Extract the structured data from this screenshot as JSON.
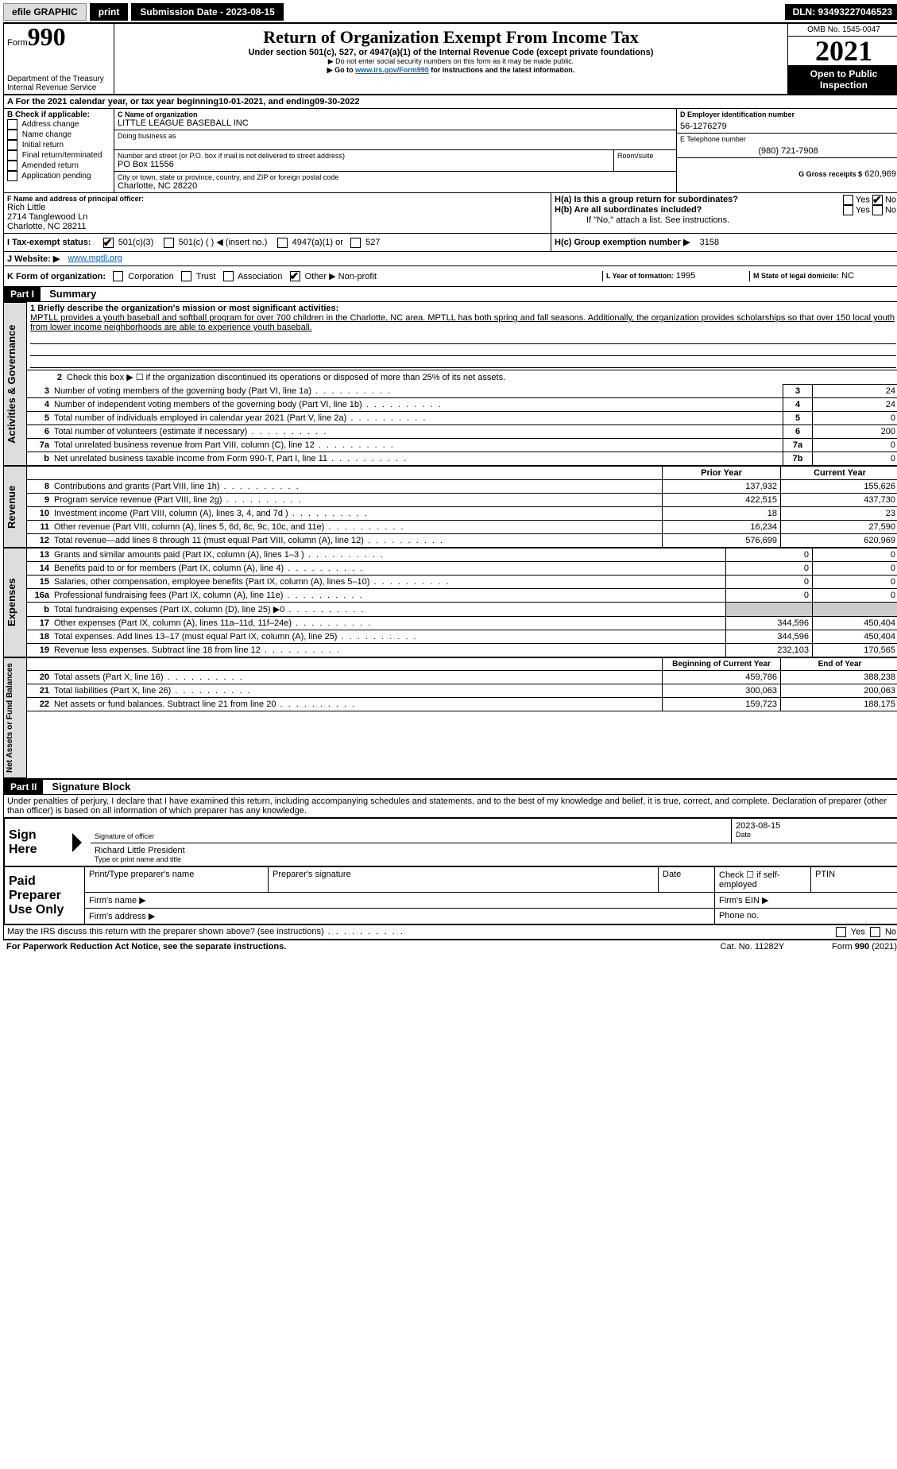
{
  "topbar": {
    "efile": "efile GRAPHIC",
    "print": "print",
    "submission": "Submission Date - 2023-08-15",
    "dln": "DLN: 93493227046523"
  },
  "header": {
    "form_label": "Form",
    "form_num": "990",
    "title": "Return of Organization Exempt From Income Tax",
    "subtitle": "Under section 501(c), 527, or 4947(a)(1) of the Internal Revenue Code (except private foundations)",
    "note1": "▶ Do not enter social security numbers on this form as it may be made public.",
    "note2_pre": "▶ Go to ",
    "note2_link": "www.irs.gov/Form990",
    "note2_post": " for instructions and the latest information.",
    "dept": "Department of the Treasury",
    "irs": "Internal Revenue Service",
    "omb": "OMB No. 1545-0047",
    "year": "2021",
    "open": "Open to Public Inspection"
  },
  "a": {
    "label_pre": "A For the 2021 calendar year, or tax year beginning ",
    "begin": "10-01-2021",
    "mid": " , and ending ",
    "end": "09-30-2022"
  },
  "b": {
    "header": "B Check if applicable:",
    "items": [
      "Address change",
      "Name change",
      "Initial return",
      "Final return/terminated",
      "Amended return",
      "Application pending"
    ]
  },
  "c": {
    "name_label": "C Name of organization",
    "name": "LITTLE LEAGUE BASEBALL INC",
    "dba_label": "Doing business as",
    "addr_label": "Number and street (or P.O. box if mail is not delivered to street address)",
    "room_label": "Room/suite",
    "addr": "PO Box 11556",
    "city_label": "City or town, state or province, country, and ZIP or foreign postal code",
    "city": "Charlotte, NC  28220"
  },
  "d": {
    "label": "D Employer identification number",
    "ein": "56-1276279"
  },
  "e": {
    "label": "E Telephone number",
    "phone": "(980) 721-7908"
  },
  "g": {
    "label": "G Gross receipts $",
    "amount": "620,969"
  },
  "f": {
    "label": "F  Name and address of principal officer:",
    "name": "Rich Little",
    "addr1": "2714 Tanglewood Ln",
    "addr2": "Charlotte, NC  28211"
  },
  "h": {
    "a_label": "H(a)  Is this a group return for subordinates?",
    "yes": "Yes",
    "no": "No",
    "b_label": "H(b)  Are all subordinates included?",
    "b_note": "If \"No,\" attach a list. See instructions.",
    "c_label": "H(c)  Group exemption number ▶",
    "c_val": "3158"
  },
  "i": {
    "label": "I    Tax-exempt status:",
    "opt1": "501(c)(3)",
    "opt2": "501(c) (  ) ◀ (insert no.)",
    "opt3": "4947(a)(1) or",
    "opt4": "527"
  },
  "j": {
    "label": "J    Website: ▶",
    "url": "www.mptll.org"
  },
  "k": {
    "label": "K Form of organization:",
    "opt1": "Corporation",
    "opt2": "Trust",
    "opt3": "Association",
    "opt4": "Other ▶",
    "other_val": "Non-profit"
  },
  "l": {
    "label": "L Year of formation:",
    "val": "1995"
  },
  "m": {
    "label": "M State of legal domicile:",
    "val": "NC"
  },
  "part1": {
    "header": "Part I",
    "title": "Summary",
    "q1": "1  Briefly describe the organization's mission or most significant activities:",
    "mission": "MPTLL provides a youth baseball and softball program for over 700 children in the Charlotte, NC area. MPTLL has both spring and fall seasons. Additionally, the organization provides scholarships so that over 150 local youth from lower income neighborhoods are able to experience youth baseball.",
    "q2": "Check this box ▶ ☐  if the organization discontinued its operations or disposed of more than 25% of its net assets.",
    "rows_gov": [
      {
        "n": "3",
        "t": "Number of voting members of the governing body (Part VI, line 1a)",
        "l": "3",
        "v": "24"
      },
      {
        "n": "4",
        "t": "Number of independent voting members of the governing body (Part VI, line 1b)",
        "l": "4",
        "v": "24"
      },
      {
        "n": "5",
        "t": "Total number of individuals employed in calendar year 2021 (Part V, line 2a)",
        "l": "5",
        "v": "0"
      },
      {
        "n": "6",
        "t": "Total number of volunteers (estimate if necessary)",
        "l": "6",
        "v": "200"
      },
      {
        "n": "7a",
        "t": "Total unrelated business revenue from Part VIII, column (C), line 12",
        "l": "7a",
        "v": "0"
      },
      {
        "n": "b",
        "t": "Net unrelated business taxable income from Form 990-T, Part I, line 11",
        "l": "7b",
        "v": "0"
      }
    ],
    "col_prior": "Prior Year",
    "col_current": "Current Year",
    "rows_rev": [
      {
        "n": "8",
        "t": "Contributions and grants (Part VIII, line 1h)",
        "p": "137,932",
        "c": "155,626"
      },
      {
        "n": "9",
        "t": "Program service revenue (Part VIII, line 2g)",
        "p": "422,515",
        "c": "437,730"
      },
      {
        "n": "10",
        "t": "Investment income (Part VIII, column (A), lines 3, 4, and 7d )",
        "p": "18",
        "c": "23"
      },
      {
        "n": "11",
        "t": "Other revenue (Part VIII, column (A), lines 5, 6d, 8c, 9c, 10c, and 11e)",
        "p": "16,234",
        "c": "27,590"
      },
      {
        "n": "12",
        "t": "Total revenue—add lines 8 through 11 (must equal Part VIII, column (A), line 12)",
        "p": "576,699",
        "c": "620,969"
      }
    ],
    "rows_exp": [
      {
        "n": "13",
        "t": "Grants and similar amounts paid (Part IX, column (A), lines 1–3 )",
        "p": "0",
        "c": "0"
      },
      {
        "n": "14",
        "t": "Benefits paid to or for members (Part IX, column (A), line 4)",
        "p": "0",
        "c": "0"
      },
      {
        "n": "15",
        "t": "Salaries, other compensation, employee benefits (Part IX, column (A), lines 5–10)",
        "p": "0",
        "c": "0"
      },
      {
        "n": "16a",
        "t": "Professional fundraising fees (Part IX, column (A), line 11e)",
        "p": "0",
        "c": "0"
      },
      {
        "n": "b",
        "t": "Total fundraising expenses (Part IX, column (D), line 25) ▶0",
        "p": "",
        "c": ""
      },
      {
        "n": "17",
        "t": "Other expenses (Part IX, column (A), lines 11a–11d, 11f–24e)",
        "p": "344,596",
        "c": "450,404"
      },
      {
        "n": "18",
        "t": "Total expenses. Add lines 13–17 (must equal Part IX, column (A), line 25)",
        "p": "344,596",
        "c": "450,404"
      },
      {
        "n": "19",
        "t": "Revenue less expenses. Subtract line 18 from line 12",
        "p": "232,103",
        "c": "170,565"
      }
    ],
    "col_begin": "Beginning of Current Year",
    "col_end": "End of Year",
    "rows_net": [
      {
        "n": "20",
        "t": "Total assets (Part X, line 16)",
        "p": "459,786",
        "c": "388,238"
      },
      {
        "n": "21",
        "t": "Total liabilities (Part X, line 26)",
        "p": "300,063",
        "c": "200,063"
      },
      {
        "n": "22",
        "t": "Net assets or fund balances. Subtract line 21 from line 20",
        "p": "159,723",
        "c": "188,175"
      }
    ]
  },
  "vtabs": {
    "gov": "Activities & Governance",
    "rev": "Revenue",
    "exp": "Expenses",
    "net": "Net Assets or Fund Balances"
  },
  "part2": {
    "header": "Part II",
    "title": "Signature Block",
    "decl": "Under penalties of perjury, I declare that I have examined this return, including accompanying schedules and statements, and to the best of my knowledge and belief, it is true, correct, and complete. Declaration of preparer (other than officer) is based on all information of which preparer has any knowledge.",
    "sign_here": "Sign Here",
    "sig_officer": "Signature of officer",
    "date": "Date",
    "sig_date": "2023-08-15",
    "name_title": "Richard Little  President",
    "type_name": "Type or print name and title",
    "paid": "Paid Preparer Use Only",
    "prep_name": "Print/Type preparer's name",
    "prep_sig": "Preparer's signature",
    "date2": "Date",
    "check_self": "Check ☐  if self-employed",
    "ptin": "PTIN",
    "firm_name": "Firm's name    ▶",
    "firm_ein": "Firm's EIN ▶",
    "firm_addr": "Firm's address ▶",
    "phone": "Phone no.",
    "may_irs": "May the IRS discuss this return with the preparer shown above? (see instructions)",
    "paperwork": "For Paperwork Reduction Act Notice, see the separate instructions.",
    "cat": "Cat. No. 11282Y",
    "form_foot": "Form 990 (2021)"
  }
}
